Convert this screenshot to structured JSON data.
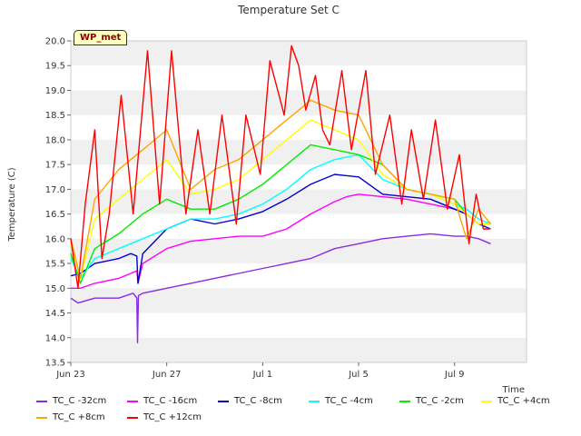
{
  "chart_data": {
    "type": "line",
    "title": "Temperature Set C",
    "xlabel": "Time",
    "ylabel": "Temperature (C)",
    "annotation": "WP_met",
    "xlim": [
      0,
      19
    ],
    "ylim": [
      13.5,
      20.0
    ],
    "x_ticks": [
      {
        "day": 0,
        "label": "Jun 23"
      },
      {
        "day": 4,
        "label": "Jun 27"
      },
      {
        "day": 8,
        "label": "Jul 1"
      },
      {
        "day": 12,
        "label": "Jul 5"
      },
      {
        "day": 16,
        "label": "Jul 9"
      }
    ],
    "y_ticks": [
      13.5,
      14.0,
      14.5,
      15.0,
      15.5,
      16.0,
      16.5,
      17.0,
      17.5,
      18.0,
      18.5,
      19.0,
      19.5,
      20.0
    ],
    "grid": "horizontal bands",
    "legend_position": "bottom",
    "series": [
      {
        "name": "TC_C -32cm",
        "color": "#8a2be2",
        "x": [
          0.0,
          0.3,
          1.0,
          2.0,
          2.6,
          2.75,
          2.78,
          2.82,
          3.0,
          4.0,
          5.0,
          6.0,
          7.0,
          8.0,
          9.0,
          10.0,
          11.0,
          12.0,
          13.0,
          14.0,
          15.0,
          16.0,
          16.5,
          17.0,
          17.5
        ],
        "y": [
          14.8,
          14.7,
          14.8,
          14.8,
          14.9,
          14.8,
          13.9,
          14.85,
          14.9,
          15.0,
          15.1,
          15.2,
          15.3,
          15.4,
          15.5,
          15.6,
          15.8,
          15.9,
          16.0,
          16.05,
          16.1,
          16.05,
          16.05,
          16.0,
          15.9
        ]
      },
      {
        "name": "TC_C -16cm",
        "color": "#ff00ff",
        "x": [
          0.0,
          0.4,
          1.0,
          2.0,
          2.5,
          2.75,
          2.8,
          3.0,
          4.0,
          5.0,
          6.0,
          7.0,
          8.0,
          9.0,
          10.0,
          11.0,
          11.5,
          12.0,
          13.0,
          14.0,
          15.0,
          16.0,
          16.5,
          17.0,
          17.5
        ],
        "y": [
          15.0,
          15.0,
          15.1,
          15.2,
          15.3,
          15.35,
          15.1,
          15.5,
          15.8,
          15.95,
          16.0,
          16.05,
          16.05,
          16.2,
          16.5,
          16.75,
          16.85,
          16.9,
          16.85,
          16.8,
          16.7,
          16.6,
          16.5,
          16.3,
          16.3
        ]
      },
      {
        "name": "TC_C -8cm",
        "color": "#0000cd",
        "x": [
          0.0,
          0.4,
          1.0,
          2.0,
          2.5,
          2.75,
          2.8,
          3.0,
          4.0,
          5.0,
          6.0,
          7.0,
          8.0,
          9.0,
          10.0,
          11.0,
          12.0,
          13.0,
          14.0,
          15.0,
          16.0,
          16.5,
          17.0,
          17.5
        ],
        "y": [
          15.25,
          15.3,
          15.5,
          15.6,
          15.7,
          15.65,
          15.1,
          15.7,
          16.2,
          16.4,
          16.3,
          16.4,
          16.55,
          16.8,
          17.1,
          17.3,
          17.25,
          16.9,
          16.85,
          16.8,
          16.6,
          16.5,
          16.3,
          16.2
        ]
      },
      {
        "name": "TC_C -4cm",
        "color": "#00ffff",
        "x": [
          0.0,
          0.4,
          1.0,
          2.0,
          3.0,
          4.0,
          5.0,
          6.0,
          7.0,
          8.0,
          9.0,
          10.0,
          11.0,
          12.0,
          13.0,
          14.0,
          15.0,
          16.0,
          16.5,
          17.0,
          17.5
        ],
        "y": [
          15.6,
          15.2,
          15.6,
          15.8,
          16.0,
          16.2,
          16.4,
          16.4,
          16.5,
          16.7,
          17.0,
          17.4,
          17.6,
          17.7,
          17.2,
          17.0,
          16.9,
          16.7,
          16.6,
          16.4,
          16.3
        ]
      },
      {
        "name": "TC_C -2cm",
        "color": "#00ee00",
        "x": [
          0.0,
          0.4,
          1.0,
          2.0,
          3.0,
          4.0,
          5.0,
          6.0,
          7.0,
          8.0,
          9.0,
          10.0,
          11.0,
          12.0,
          13.0,
          14.0,
          15.0,
          16.0,
          16.5,
          17.0,
          17.5
        ],
        "y": [
          15.7,
          15.1,
          15.8,
          16.1,
          16.5,
          16.8,
          16.6,
          16.6,
          16.8,
          17.1,
          17.5,
          17.9,
          17.8,
          17.7,
          17.5,
          17.0,
          16.9,
          16.8,
          16.5,
          16.3,
          16.3
        ]
      },
      {
        "name": "TC_C +4cm",
        "color": "#ffff00",
        "x": [
          0.0,
          0.4,
          1.0,
          2.0,
          3.0,
          4.0,
          5.0,
          6.0,
          7.0,
          8.0,
          9.0,
          10.0,
          11.0,
          12.0,
          13.0,
          14.0,
          15.0,
          16.0,
          16.5,
          17.0,
          17.5
        ],
        "y": [
          15.9,
          15.2,
          16.4,
          16.8,
          17.2,
          17.6,
          16.9,
          17.0,
          17.2,
          17.6,
          18.0,
          18.4,
          18.2,
          18.0,
          17.3,
          17.0,
          16.9,
          16.7,
          16.5,
          16.3,
          16.3
        ]
      },
      {
        "name": "TC_C +8cm",
        "color": "#ffa500",
        "x": [
          0.0,
          0.4,
          1.0,
          2.0,
          3.0,
          4.0,
          5.0,
          6.0,
          7.0,
          8.0,
          9.0,
          10.0,
          11.0,
          12.0,
          13.0,
          14.0,
          15.0,
          16.0,
          16.5,
          17.0,
          17.5
        ],
        "y": [
          16.0,
          15.2,
          16.8,
          17.4,
          17.8,
          18.2,
          17.0,
          17.4,
          17.6,
          18.0,
          18.4,
          18.8,
          18.6,
          18.5,
          17.5,
          17.0,
          16.9,
          16.8,
          16.0,
          16.6,
          16.3
        ]
      },
      {
        "name": "TC_C +12cm",
        "color": "#ff0000",
        "x": [
          0.0,
          0.3,
          0.6,
          1.0,
          1.3,
          1.6,
          2.1,
          2.6,
          3.2,
          3.7,
          4.2,
          4.8,
          5.3,
          5.8,
          6.3,
          6.9,
          7.3,
          7.9,
          8.3,
          8.9,
          9.2,
          9.5,
          9.8,
          10.2,
          10.5,
          10.8,
          11.3,
          11.7,
          12.3,
          12.7,
          13.3,
          13.8,
          14.2,
          14.7,
          15.2,
          15.7,
          16.2,
          16.6,
          16.9,
          17.2,
          17.5
        ],
        "y": [
          16.0,
          15.0,
          16.7,
          18.2,
          15.6,
          16.5,
          18.9,
          16.5,
          19.8,
          16.7,
          19.8,
          16.5,
          18.2,
          16.5,
          18.5,
          16.3,
          18.5,
          17.3,
          19.6,
          18.5,
          19.9,
          19.5,
          18.6,
          19.3,
          18.2,
          17.9,
          19.4,
          17.8,
          19.4,
          17.3,
          18.5,
          16.7,
          18.2,
          16.8,
          18.4,
          16.6,
          17.7,
          15.9,
          16.9,
          16.2,
          16.2
        ]
      }
    ]
  }
}
